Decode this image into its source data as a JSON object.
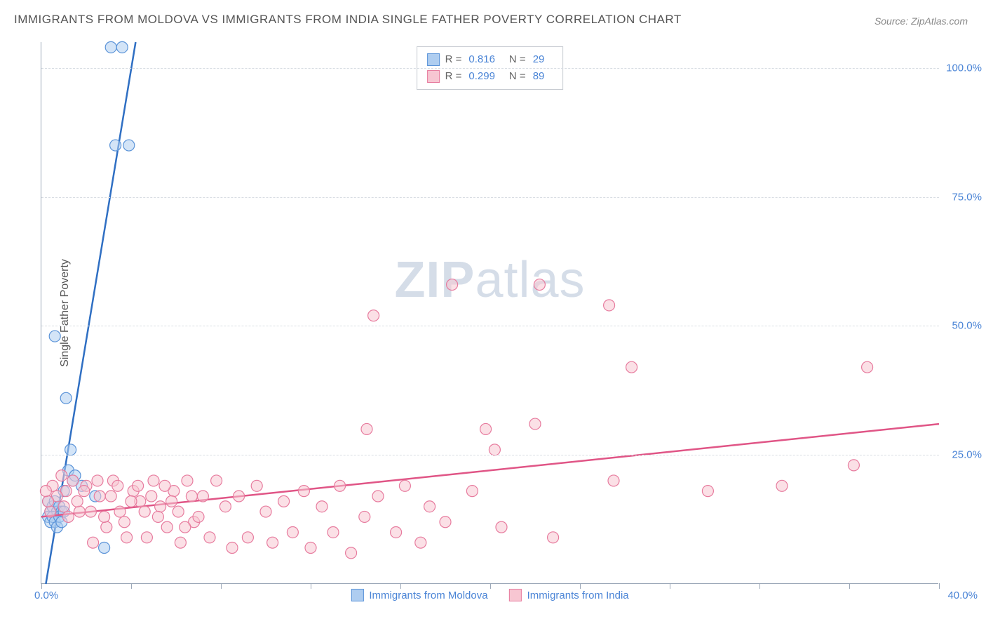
{
  "title": "IMMIGRANTS FROM MOLDOVA VS IMMIGRANTS FROM INDIA SINGLE FATHER POVERTY CORRELATION CHART",
  "source": "Source: ZipAtlas.com",
  "ylabel": "Single Father Poverty",
  "watermark_a": "ZIP",
  "watermark_b": "atlas",
  "chart": {
    "type": "scatter",
    "xlim": [
      0,
      40
    ],
    "ylim": [
      0,
      105
    ],
    "y_ticks": [
      25,
      50,
      75,
      100
    ],
    "y_tick_labels": [
      "25.0%",
      "50.0%",
      "75.0%",
      "100.0%"
    ],
    "x_tick_step": 4,
    "x_min_label": "0.0%",
    "x_max_label": "40.0%",
    "background_color": "#ffffff",
    "grid_color": "#d8dde3",
    "axis_color": "#9ca8b8",
    "marker_radius": 8,
    "marker_stroke_width": 1.2,
    "series": [
      {
        "name": "Immigrants from Moldova",
        "fill": "#aecdf0",
        "stroke": "#5a93d8",
        "fill_opacity": 0.55,
        "line_color": "#2f6fc3",
        "line_width": 2.5,
        "R": 0.816,
        "N": 29,
        "trend": {
          "x1": 0.2,
          "y1": 0,
          "x2": 4.2,
          "y2": 105
        },
        "points": [
          [
            3.1,
            104
          ],
          [
            3.6,
            104
          ],
          [
            3.3,
            85
          ],
          [
            3.9,
            85
          ],
          [
            0.6,
            48
          ],
          [
            1.1,
            36
          ],
          [
            0.3,
            16
          ],
          [
            0.4,
            14
          ],
          [
            0.5,
            15
          ],
          [
            0.6,
            16
          ],
          [
            0.7,
            14
          ],
          [
            0.8,
            15
          ],
          [
            0.9,
            14
          ],
          [
            1.0,
            18
          ],
          [
            1.2,
            22
          ],
          [
            1.3,
            26
          ],
          [
            1.4,
            20
          ],
          [
            1.5,
            21
          ],
          [
            0.3,
            13
          ],
          [
            0.4,
            12
          ],
          [
            0.5,
            13
          ],
          [
            0.6,
            12
          ],
          [
            0.7,
            11
          ],
          [
            0.8,
            13
          ],
          [
            0.9,
            12
          ],
          [
            1.0,
            14
          ],
          [
            1.8,
            19
          ],
          [
            2.4,
            17
          ],
          [
            2.8,
            7
          ]
        ]
      },
      {
        "name": "Immigrants from India",
        "fill": "#f7c6d2",
        "stroke": "#e77b9e",
        "fill_opacity": 0.55,
        "line_color": "#e05586",
        "line_width": 2.5,
        "R": 0.299,
        "N": 89,
        "trend": {
          "x1": 0,
          "y1": 13,
          "x2": 40,
          "y2": 31
        },
        "points": [
          [
            18.3,
            58
          ],
          [
            22.2,
            58
          ],
          [
            14.8,
            52
          ],
          [
            25.3,
            54
          ],
          [
            26.3,
            42
          ],
          [
            36.8,
            42
          ],
          [
            22.0,
            31
          ],
          [
            19.8,
            30
          ],
          [
            14.5,
            30
          ],
          [
            20.2,
            26
          ],
          [
            36.2,
            23
          ],
          [
            33.0,
            19
          ],
          [
            29.7,
            18
          ],
          [
            25.5,
            20
          ],
          [
            19.2,
            18
          ],
          [
            22.8,
            9
          ],
          [
            20.5,
            11
          ],
          [
            18.0,
            12
          ],
          [
            17.3,
            15
          ],
          [
            16.9,
            8
          ],
          [
            16.2,
            19
          ],
          [
            15.8,
            10
          ],
          [
            15.0,
            17
          ],
          [
            14.4,
            13
          ],
          [
            13.8,
            6
          ],
          [
            13.3,
            19
          ],
          [
            13.0,
            10
          ],
          [
            12.5,
            15
          ],
          [
            12.0,
            7
          ],
          [
            11.7,
            18
          ],
          [
            11.2,
            10
          ],
          [
            10.8,
            16
          ],
          [
            10.3,
            8
          ],
          [
            10.0,
            14
          ],
          [
            9.6,
            19
          ],
          [
            9.2,
            9
          ],
          [
            8.8,
            17
          ],
          [
            8.5,
            7
          ],
          [
            8.2,
            15
          ],
          [
            7.8,
            20
          ],
          [
            7.5,
            9
          ],
          [
            7.2,
            17
          ],
          [
            6.8,
            12
          ],
          [
            6.5,
            20
          ],
          [
            6.2,
            8
          ],
          [
            5.9,
            18
          ],
          [
            5.6,
            11
          ],
          [
            5.3,
            15
          ],
          [
            5.0,
            20
          ],
          [
            4.7,
            9
          ],
          [
            4.4,
            16
          ],
          [
            4.1,
            18
          ],
          [
            3.8,
            9
          ],
          [
            3.5,
            14
          ],
          [
            3.2,
            20
          ],
          [
            2.9,
            11
          ],
          [
            2.6,
            17
          ],
          [
            2.3,
            8
          ],
          [
            2.0,
            19
          ],
          [
            1.7,
            14
          ],
          [
            1.4,
            20
          ],
          [
            1.1,
            18
          ],
          [
            0.9,
            21
          ],
          [
            0.7,
            17
          ],
          [
            0.5,
            19
          ],
          [
            0.4,
            14
          ],
          [
            0.3,
            16
          ],
          [
            0.2,
            18
          ],
          [
            1.0,
            15
          ],
          [
            1.2,
            13
          ],
          [
            1.6,
            16
          ],
          [
            1.9,
            18
          ],
          [
            2.2,
            14
          ],
          [
            2.5,
            20
          ],
          [
            2.8,
            13
          ],
          [
            3.1,
            17
          ],
          [
            3.4,
            19
          ],
          [
            3.7,
            12
          ],
          [
            4.0,
            16
          ],
          [
            4.3,
            19
          ],
          [
            4.6,
            14
          ],
          [
            4.9,
            17
          ],
          [
            5.2,
            13
          ],
          [
            5.5,
            19
          ],
          [
            5.8,
            16
          ],
          [
            6.1,
            14
          ],
          [
            6.4,
            11
          ],
          [
            6.7,
            17
          ],
          [
            7.0,
            13
          ]
        ]
      }
    ]
  },
  "legend": {
    "r_label": "R =",
    "n_label": "N ="
  }
}
